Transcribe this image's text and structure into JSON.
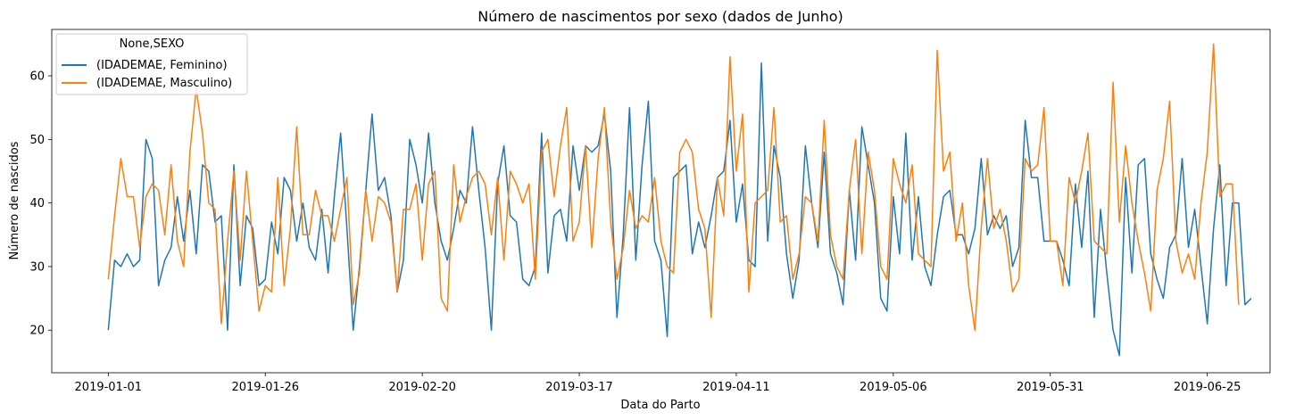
{
  "chart_data": {
    "type": "line",
    "title": "Número de nascimentos por sexo (dados de Junho)",
    "xlabel": "Data do Parto",
    "ylabel": "Número de nascidos",
    "start_date": "2019-01-01",
    "x_ticks": [
      "2019-01-01",
      "2019-01-26",
      "2019-02-20",
      "2019-03-17",
      "2019-04-11",
      "2019-05-06",
      "2019-05-31",
      "2019-06-25"
    ],
    "x_tick_days": [
      0,
      25,
      50,
      75,
      100,
      125,
      150,
      175
    ],
    "xlim": [
      -9,
      185
    ],
    "ylim": [
      13.3,
      67.3
    ],
    "y_ticks": [
      20,
      30,
      40,
      50,
      60
    ],
    "grid": false,
    "legend": {
      "title": "None,SEXO",
      "position": "top-left"
    },
    "series": [
      {
        "name": "(IDADEMAE, Feminino)",
        "color": "#1f77b4",
        "values": [
          20,
          31,
          30,
          32,
          30,
          31,
          50,
          47,
          27,
          31,
          33,
          41,
          34,
          42,
          32,
          46,
          45,
          37,
          38,
          20,
          46,
          27,
          38,
          36,
          27,
          28,
          37,
          32,
          44,
          42,
          34,
          40,
          33,
          31,
          39,
          29,
          41,
          51,
          36,
          20,
          30,
          42,
          54,
          42,
          44,
          38,
          26,
          31,
          50,
          46,
          40,
          51,
          40,
          34,
          31,
          36,
          42,
          40,
          52,
          42,
          33,
          20,
          43,
          49,
          38,
          37,
          28,
          27,
          30,
          51,
          29,
          38,
          39,
          34,
          49,
          42,
          49,
          48,
          49,
          54,
          45,
          22,
          35,
          55,
          31,
          46,
          56,
          34,
          31,
          19,
          44,
          45,
          46,
          32,
          37,
          33,
          38,
          44,
          45,
          53,
          37,
          43,
          31,
          30,
          62,
          34,
          49,
          44,
          32,
          25,
          31,
          49,
          40,
          33,
          48,
          32,
          29,
          24,
          42,
          31,
          52,
          46,
          40,
          25,
          23,
          41,
          32,
          51,
          31,
          41,
          30,
          27,
          35,
          41,
          42,
          35,
          35,
          32,
          36,
          47,
          35,
          38,
          36,
          38,
          30,
          33,
          53,
          44,
          44,
          34,
          34,
          34,
          31,
          27,
          43,
          33,
          45,
          22,
          39,
          29,
          20,
          16,
          44,
          29,
          46,
          47,
          32,
          28,
          25,
          33,
          35,
          47,
          33,
          39,
          30,
          21,
          36,
          46,
          27,
          40,
          40,
          24,
          25
        ]
      },
      {
        "name": "(IDADEMAE, Masculino)",
        "color": "#ff7f0e",
        "values": [
          28,
          38,
          47,
          41,
          41,
          33,
          41,
          43,
          42,
          35,
          46,
          34,
          30,
          48,
          58,
          51,
          40,
          39,
          21,
          34,
          45,
          31,
          45,
          34,
          23,
          27,
          26,
          44,
          27,
          36,
          52,
          35,
          35,
          42,
          38,
          38,
          34,
          39,
          44,
          24,
          29,
          42,
          34,
          41,
          40,
          37,
          26,
          39,
          39,
          43,
          31,
          43,
          45,
          25,
          23,
          46,
          37,
          41,
          44,
          45,
          43,
          35,
          44,
          31,
          45,
          43,
          40,
          43,
          28,
          48,
          50,
          41,
          49,
          55,
          34,
          37,
          49,
          33,
          47,
          55,
          37,
          28,
          33,
          42,
          36,
          38,
          37,
          44,
          34,
          30,
          29,
          48,
          50,
          48,
          39,
          36,
          22,
          44,
          38,
          63,
          45,
          54,
          26,
          40,
          41,
          42,
          55,
          37,
          38,
          28,
          32,
          41,
          40,
          34,
          53,
          35,
          30,
          28,
          42,
          50,
          32,
          48,
          42,
          30,
          28,
          47,
          43,
          40,
          46,
          32,
          31,
          30,
          64,
          45,
          48,
          34,
          40,
          27,
          20,
          36,
          47,
          36,
          39,
          34,
          26,
          28,
          47,
          45,
          46,
          55,
          34,
          34,
          27,
          44,
          40,
          45,
          51,
          34,
          33,
          32,
          59,
          37,
          49,
          40,
          34,
          29,
          23,
          42,
          47,
          56,
          34,
          29,
          32,
          28,
          40,
          48,
          65,
          41,
          43,
          43,
          24
        ]
      }
    ]
  }
}
